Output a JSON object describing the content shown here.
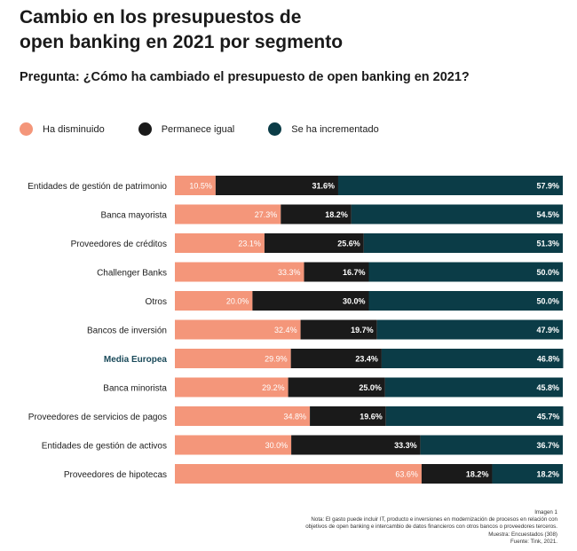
{
  "title_lines": [
    "Cambio en los presupuestos de",
    "open banking en 2021 por segmento"
  ],
  "question": "Pregunta: ¿Cómo ha cambiado el presupuesto de open banking en 2021?",
  "colors": {
    "disminuido": "#f4967a",
    "igual": "#1a1a1a",
    "incrementado": "#0b3c47",
    "highlight_label": "#1a4a5a"
  },
  "chart_data": {
    "type": "bar",
    "orientation": "horizontal",
    "stacked": true,
    "xlim": [
      0,
      100
    ],
    "grid": false,
    "legend_position": "top-left",
    "categories": [
      "Entidades de gestión de patrimonio",
      "Banca mayorista",
      "Proveedores de créditos",
      "Challenger Banks",
      "Otros",
      "Bancos de inversión",
      "Media Europea",
      "Banca minorista",
      "Proveedores de servicios de pagos",
      "Entidades de gestión de activos",
      "Proveedores de hipotecas"
    ],
    "highlight_category": "Media Europea",
    "series": [
      {
        "name": "Ha disminuido",
        "color_key": "disminuido",
        "values": [
          10.5,
          27.3,
          23.1,
          33.3,
          20.0,
          32.4,
          29.9,
          29.2,
          34.8,
          30.0,
          63.6
        ],
        "labels": [
          "10.5%",
          "27.3%",
          "23.1%",
          "33.3%",
          "20.0%",
          "32.4%",
          "29.9%",
          "29.2%",
          "34.8%",
          "30.0%",
          "63.6%"
        ]
      },
      {
        "name": "Permanece igual",
        "color_key": "igual",
        "values": [
          31.6,
          18.2,
          25.6,
          16.7,
          30.0,
          19.7,
          23.4,
          25.0,
          19.6,
          33.3,
          18.2
        ],
        "labels": [
          "31.6%",
          "18.2%",
          "25.6%",
          "16.7%",
          "30.0%",
          "19.7%",
          "23.4%",
          "25.0%",
          "19.6%",
          "33.3%",
          "18.2%"
        ]
      },
      {
        "name": "Se ha incrementado",
        "color_key": "incrementado",
        "values": [
          57.9,
          54.5,
          51.3,
          50.0,
          50.0,
          47.9,
          46.8,
          45.8,
          45.7,
          36.7,
          18.2
        ],
        "labels": [
          "57.9%",
          "54.5%",
          "51.3%",
          "50.0%",
          "50.0%",
          "47.9%",
          "46.8%",
          "45.8%",
          "45.7%",
          "36.7%",
          "18.2%"
        ]
      }
    ]
  },
  "footer": {
    "lines": [
      "Imagen 1",
      "Nota: El gasto puede incluir IT, producto e inversiones en modernización de procesos en relación con",
      "objetivos de open banking e intercambio de datos financieros con otros bancos o proveedores terceros.",
      "Muestra: Encuestados (308)",
      "Fuente: Tink, 2021."
    ]
  }
}
